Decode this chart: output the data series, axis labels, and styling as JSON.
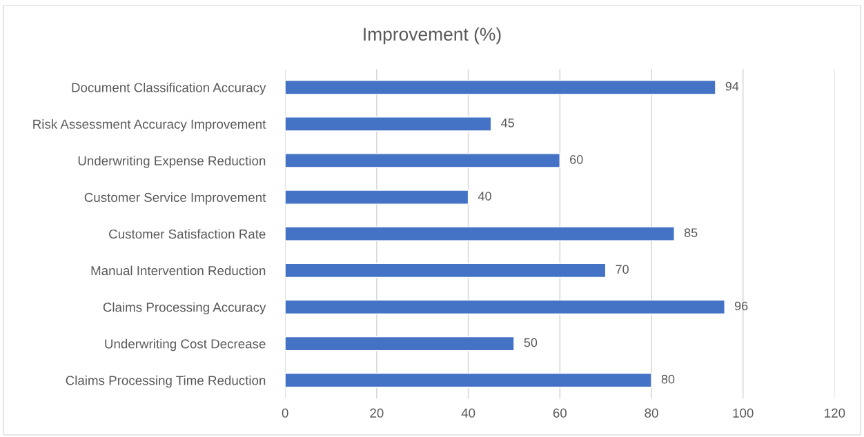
{
  "chart_data": {
    "type": "bar",
    "orientation": "horizontal",
    "title": "Improvement (%)",
    "categories": [
      "Document Classification Accuracy",
      "Risk Assessment Accuracy Improvement",
      "Underwriting Expense Reduction",
      "Customer Service Improvement",
      "Customer Satisfaction Rate",
      "Manual Intervention Reduction",
      "Claims Processing Accuracy",
      "Underwriting Cost Decrease",
      "Claims Processing Time Reduction"
    ],
    "values": [
      94,
      45,
      60,
      40,
      85,
      70,
      96,
      50,
      80
    ],
    "color": "#4472c4",
    "xlim": [
      0,
      120
    ],
    "xticks": [
      0,
      20,
      40,
      60,
      80,
      100,
      120
    ],
    "grid": "x",
    "data_labels": true,
    "legend": false
  }
}
